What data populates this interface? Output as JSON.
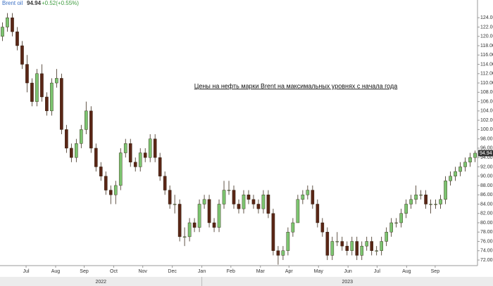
{
  "chart_data": {
    "type": "candlestick",
    "symbol": "Brent oil",
    "price": "94.94",
    "change": "+0.52(+0.55%)",
    "annotation": "Цены на нефть марки Brent на максимальных уровнях с начала года",
    "up_color": "#7cc470",
    "down_color": "#5a2616",
    "ylim": [
      70.8,
      126.6
    ],
    "yticks": [
      {
        "value": 72,
        "label": "72.00"
      },
      {
        "value": 74,
        "label": "74.00"
      },
      {
        "value": 76,
        "label": "76.00"
      },
      {
        "value": 78,
        "label": "78.00"
      },
      {
        "value": 80,
        "label": "80.00"
      },
      {
        "value": 82,
        "label": "82.00"
      },
      {
        "value": 84,
        "label": "84.00"
      },
      {
        "value": 86,
        "label": "86.00"
      },
      {
        "value": 88,
        "label": "88.00"
      },
      {
        "value": 90,
        "label": "90.00"
      },
      {
        "value": 92,
        "label": "92.00"
      },
      {
        "value": 94,
        "label": "94.00"
      },
      {
        "value": 96,
        "label": "96.00"
      },
      {
        "value": 98,
        "label": "98.00"
      },
      {
        "value": 100,
        "label": "100.00"
      },
      {
        "value": 102,
        "label": "102.00"
      },
      {
        "value": 104,
        "label": "104.00"
      },
      {
        "value": 106,
        "label": "106.00"
      },
      {
        "value": 108,
        "label": "108.00"
      },
      {
        "value": 110,
        "label": "110.00"
      },
      {
        "value": 112,
        "label": "112.00"
      },
      {
        "value": 114,
        "label": "114.00"
      },
      {
        "value": 116,
        "label": "116.00"
      },
      {
        "value": 118,
        "label": "118.00"
      },
      {
        "value": 120,
        "label": "120.00"
      },
      {
        "value": 122,
        "label": "122.00"
      },
      {
        "value": 124,
        "label": "124.00"
      }
    ],
    "xlim": [
      0,
      97
    ],
    "xticks": [
      {
        "value": 5.3,
        "label": "Jul"
      },
      {
        "value": 11.3,
        "label": "Aug"
      },
      {
        "value": 17.1,
        "label": "Sep"
      },
      {
        "value": 23.1,
        "label": "Oct"
      },
      {
        "value": 29,
        "label": "Nov"
      },
      {
        "value": 35,
        "label": "Dec"
      },
      {
        "value": 41,
        "label": "Jan"
      },
      {
        "value": 46.9,
        "label": "Feb"
      },
      {
        "value": 52.9,
        "label": "Mar"
      },
      {
        "value": 58.7,
        "label": "Apr"
      },
      {
        "value": 64.7,
        "label": "May"
      },
      {
        "value": 70.7,
        "label": "Jun"
      },
      {
        "value": 76.6,
        "label": "Jul"
      },
      {
        "value": 82.6,
        "label": "Aug"
      },
      {
        "value": 88.4,
        "label": "Sep"
      }
    ],
    "years": [
      "2022",
      "2023"
    ],
    "candles": [
      [
        120,
        123,
        119,
        122
      ],
      [
        122,
        125,
        121,
        124
      ],
      [
        124,
        125,
        120,
        121
      ],
      [
        121,
        122,
        117,
        118
      ],
      [
        118,
        119,
        113,
        114
      ],
      [
        114,
        116,
        108,
        110
      ],
      [
        110,
        111,
        105,
        106
      ],
      [
        106,
        113,
        105,
        112
      ],
      [
        112,
        114,
        106,
        107
      ],
      [
        107,
        108,
        103,
        104
      ],
      [
        104,
        111,
        103,
        110
      ],
      [
        110,
        113,
        109,
        111
      ],
      [
        111,
        112,
        99,
        100
      ],
      [
        100,
        101,
        95,
        96
      ],
      [
        96,
        97,
        93,
        94
      ],
      [
        94,
        98,
        93,
        97
      ],
      [
        97,
        101,
        96,
        100
      ],
      [
        100,
        106,
        99,
        104
      ],
      [
        104,
        105,
        95,
        96
      ],
      [
        96,
        97,
        91,
        92
      ],
      [
        92,
        93,
        89,
        90
      ],
      [
        90,
        91,
        86,
        87
      ],
      [
        87,
        88,
        84,
        86
      ],
      [
        86,
        89,
        84,
        88
      ],
      [
        88,
        96,
        87,
        95
      ],
      [
        95,
        98,
        94,
        97
      ],
      [
        97,
        98,
        92,
        93
      ],
      [
        93,
        94,
        91,
        92
      ],
      [
        92,
        96,
        91,
        95
      ],
      [
        95,
        96,
        93,
        94
      ],
      [
        94,
        99,
        93,
        98
      ],
      [
        98,
        99,
        93,
        94
      ],
      [
        94,
        95,
        89,
        90
      ],
      [
        90,
        91,
        86,
        87
      ],
      [
        87,
        88,
        83,
        84
      ],
      [
        84,
        86,
        82,
        84
      ],
      [
        84,
        85,
        76,
        77
      ],
      [
        77,
        79,
        75,
        77
      ],
      [
        77,
        81,
        76,
        80
      ],
      [
        80,
        81,
        78,
        79
      ],
      [
        79,
        85,
        78,
        84
      ],
      [
        84,
        86,
        83,
        85
      ],
      [
        85,
        86,
        79,
        80
      ],
      [
        80,
        81,
        78,
        79
      ],
      [
        79,
        85,
        78,
        84
      ],
      [
        84,
        89,
        83,
        87
      ],
      [
        87,
        89,
        86,
        87
      ],
      [
        87,
        88,
        83,
        84
      ],
      [
        84,
        85,
        82,
        83
      ],
      [
        83,
        87,
        82,
        86
      ],
      [
        86,
        87,
        84,
        85
      ],
      [
        85,
        86,
        83,
        84
      ],
      [
        84,
        85,
        82,
        83
      ],
      [
        83,
        87,
        82,
        86
      ],
      [
        86,
        87,
        81,
        82
      ],
      [
        82,
        83,
        73,
        74
      ],
      [
        74,
        75,
        71,
        73
      ],
      [
        73,
        75,
        72,
        74
      ],
      [
        74,
        79,
        73,
        78
      ],
      [
        78,
        81,
        77,
        80
      ],
      [
        80,
        86,
        80,
        85
      ],
      [
        85,
        87,
        84,
        86
      ],
      [
        86,
        88,
        85,
        87
      ],
      [
        87,
        88,
        83,
        84
      ],
      [
        84,
        85,
        79,
        80
      ],
      [
        80,
        81,
        77,
        78
      ],
      [
        78,
        79,
        72,
        73
      ],
      [
        73,
        77,
        72,
        76
      ],
      [
        76,
        78,
        75,
        76
      ],
      [
        76,
        77,
        74,
        75
      ],
      [
        75,
        76,
        73,
        74
      ],
      [
        74,
        77,
        73,
        76
      ],
      [
        76,
        77,
        72,
        73
      ],
      [
        73,
        76,
        72,
        75
      ],
      [
        75,
        77,
        74,
        76
      ],
      [
        76,
        77,
        73,
        74
      ],
      [
        74,
        75,
        73,
        74
      ],
      [
        74,
        77,
        73,
        76
      ],
      [
        76,
        79,
        75,
        78
      ],
      [
        78,
        81,
        77,
        80
      ],
      [
        80,
        81,
        79,
        80
      ],
      [
        80,
        83,
        79,
        82
      ],
      [
        82,
        85,
        81,
        84
      ],
      [
        84,
        86,
        83,
        85
      ],
      [
        85,
        88,
        84,
        86
      ],
      [
        86,
        87,
        85,
        86
      ],
      [
        86,
        87,
        83,
        84
      ],
      [
        84,
        85,
        82,
        84
      ],
      [
        84,
        85,
        83,
        84
      ],
      [
        84,
        86,
        83,
        85
      ],
      [
        85,
        90,
        84,
        89
      ],
      [
        89,
        91,
        88,
        90
      ],
      [
        90,
        92,
        89,
        91
      ],
      [
        91,
        93,
        90,
        92
      ],
      [
        92,
        94,
        91,
        93
      ],
      [
        93,
        95,
        92,
        94
      ],
      [
        94,
        95.5,
        93,
        94.94
      ]
    ]
  }
}
